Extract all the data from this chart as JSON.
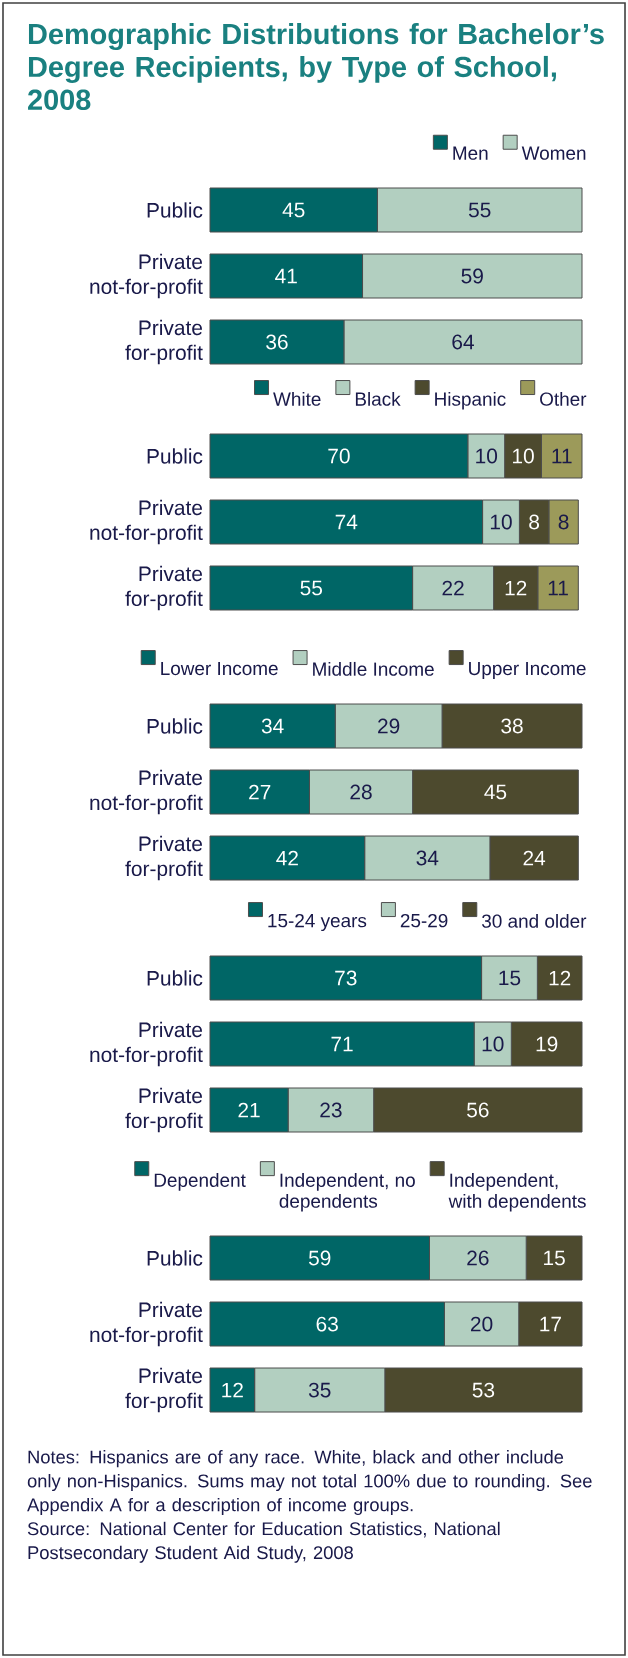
{
  "chart_data": [
    {
      "type": "bar",
      "orientation": "horizontal",
      "stacked": true,
      "xlim": [
        0,
        100
      ],
      "tick_labels": "y",
      "data_labels": true,
      "legend": "top",
      "title": "Demographic Distributions for Bachelor’s Degree Recipients, by Type of School, 2008",
      "categories": [
        "Public",
        "Private not-for-profit",
        "Private for-profit"
      ],
      "series": [
        {
          "name": "Men",
          "color": "#006666",
          "values": [
            45,
            41,
            36
          ]
        },
        {
          "name": "Women",
          "color": "#b2cfc0",
          "values": [
            55,
            59,
            64
          ]
        }
      ]
    },
    {
      "type": "bar",
      "orientation": "horizontal",
      "stacked": true,
      "xlim": [
        0,
        101
      ],
      "tick_labels": "y",
      "data_labels": true,
      "legend": "top",
      "categories": [
        "Public",
        "Private not-for-profit",
        "Private for-profit"
      ],
      "series": [
        {
          "name": "White",
          "color": "#006666",
          "values": [
            70,
            74,
            55
          ]
        },
        {
          "name": "Black",
          "color": "#b2cfc0",
          "values": [
            10,
            10,
            22
          ]
        },
        {
          "name": "Hispanic",
          "color": "#4d4a2e",
          "values": [
            10,
            8,
            12
          ]
        },
        {
          "name": "Other",
          "color": "#9c9a5a",
          "values": [
            11,
            8,
            11
          ]
        }
      ]
    },
    {
      "type": "bar",
      "orientation": "horizontal",
      "stacked": true,
      "xlim": [
        0,
        101
      ],
      "tick_labels": "y",
      "data_labels": true,
      "legend": "top",
      "categories": [
        "Public",
        "Private not-for-profit",
        "Private for-profit"
      ],
      "series": [
        {
          "name": "Lower Income",
          "color": "#006666",
          "values": [
            34,
            27,
            42
          ]
        },
        {
          "name": "Middle Income",
          "color": "#b2cfc0",
          "values": [
            29,
            28,
            34
          ]
        },
        {
          "name": "Upper Income",
          "color": "#4d4a2e",
          "values": [
            38,
            45,
            24
          ]
        }
      ]
    },
    {
      "type": "bar",
      "orientation": "horizontal",
      "stacked": true,
      "xlim": [
        0,
        100
      ],
      "tick_labels": "y",
      "data_labels": true,
      "legend": "top",
      "categories": [
        "Public",
        "Private not-for-profit",
        "Private for-profit"
      ],
      "series": [
        {
          "name": "15-24 years",
          "color": "#006666",
          "values": [
            73,
            71,
            21
          ]
        },
        {
          "name": "25-29",
          "color": "#b2cfc0",
          "values": [
            15,
            10,
            23
          ]
        },
        {
          "name": "30 and older",
          "color": "#4d4a2e",
          "values": [
            12,
            19,
            56
          ]
        }
      ]
    },
    {
      "type": "bar",
      "orientation": "horizontal",
      "stacked": true,
      "xlim": [
        0,
        100
      ],
      "tick_labels": "y",
      "data_labels": true,
      "legend": "top",
      "categories": [
        "Public",
        "Private not-for-profit",
        "Private for-profit"
      ],
      "series": [
        {
          "name": "Dependent",
          "color": "#006666",
          "values": [
            59,
            63,
            12
          ]
        },
        {
          "name": "Independent, no dependents",
          "color": "#b2cfc0",
          "values": [
            26,
            20,
            35
          ]
        },
        {
          "name": "Independent, with dependents",
          "color": "#4d4a2e",
          "values": [
            15,
            17,
            53
          ]
        }
      ],
      "annotations": [
        "Notes: Hispanics are of any race. White, black and other include only non-Hispanics. Sums may not total 100% due to rounding. See Appendix A for a description of income groups.",
        "Source: National Center for Education Statistics, National Postsecondary Student Aid Study, 2008"
      ]
    }
  ]
}
